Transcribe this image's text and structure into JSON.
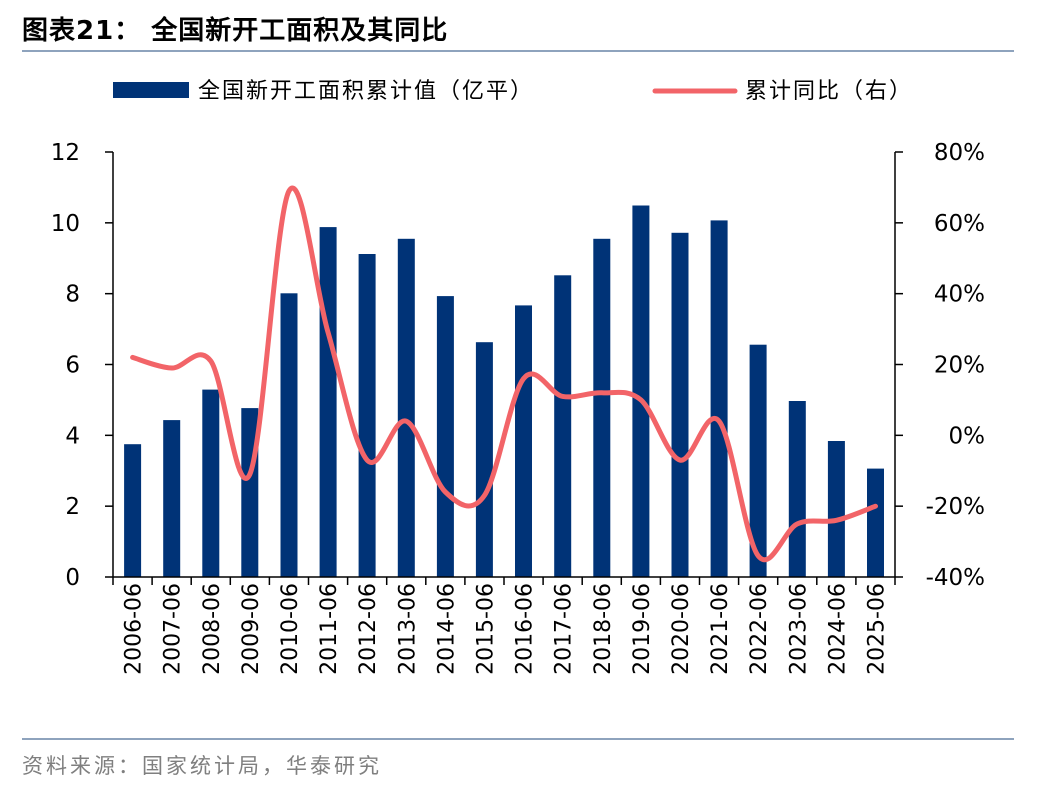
{
  "header": {
    "title": "图表21：  全国新开工面积及其同比"
  },
  "footer": {
    "source": "资料来源：国家统计局，华泰研究"
  },
  "colors": {
    "bar": "#003377",
    "line": "#f26468",
    "rule": "#8ea3bd",
    "source_text": "#7f7f7f"
  },
  "chart_data": {
    "type": "bar+line",
    "categories": [
      "2006-06",
      "2007-06",
      "2008-06",
      "2009-06",
      "2010-06",
      "2011-06",
      "2012-06",
      "2013-06",
      "2014-06",
      "2015-06",
      "2016-06",
      "2017-06",
      "2018-06",
      "2019-06",
      "2020-06",
      "2021-06",
      "2022-06",
      "2023-06",
      "2024-06",
      "2025-06"
    ],
    "series": [
      {
        "name": "全国新开工面积累计值（亿平）",
        "type": "bar",
        "axis": "left",
        "values": [
          3.75,
          4.43,
          5.29,
          4.77,
          8.01,
          9.88,
          9.12,
          9.55,
          7.93,
          6.63,
          7.67,
          8.52,
          9.55,
          10.49,
          9.72,
          10.07,
          6.56,
          4.97,
          3.84,
          3.06
        ]
      },
      {
        "name": "累计同比（右）",
        "type": "line",
        "axis": "right",
        "values": [
          22,
          19,
          21,
          -11,
          69,
          29,
          -7,
          4,
          -16,
          -17,
          16,
          11,
          12,
          10,
          -7,
          4,
          -34,
          -25,
          -24,
          -20
        ]
      }
    ],
    "y_left": {
      "min": 0,
      "max": 12,
      "ticks": [
        "0",
        "2",
        "4",
        "6",
        "8",
        "10",
        "12"
      ]
    },
    "y_right": {
      "min": -40,
      "max": 80,
      "ticks": [
        "-40%",
        "-20%",
        "0%",
        "20%",
        "40%",
        "60%",
        "80%"
      ]
    },
    "legend_position": "top",
    "grid": false
  }
}
